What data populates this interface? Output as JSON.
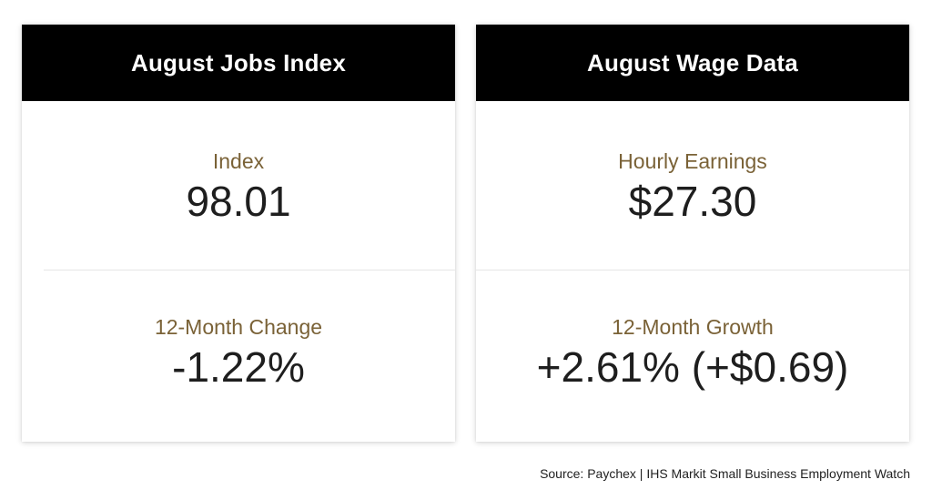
{
  "jobs_card": {
    "title": "August Jobs Index",
    "top_label": "Index",
    "top_value": "98.01",
    "bottom_label": "12-Month Change",
    "bottom_value": "-1.22%"
  },
  "wage_card": {
    "title": "August Wage Data",
    "top_label": "Hourly Earnings",
    "top_value": "$27.30",
    "bottom_label": "12-Month Growth",
    "bottom_value": "+2.61% (+$0.69)"
  },
  "source": "Source: Paychex | IHS Markit Small Business Employment Watch",
  "colors": {
    "header_bg": "#000000",
    "header_text": "#ffffff",
    "label": "#7a6237",
    "value": "#1e1e1e"
  }
}
